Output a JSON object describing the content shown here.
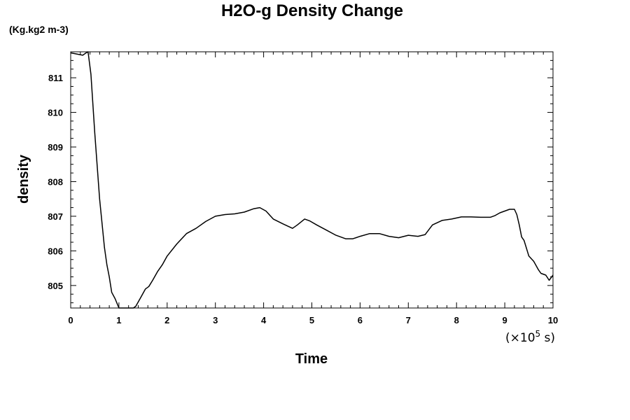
{
  "chart_data": {
    "type": "line",
    "title": "H2O-g Density Change",
    "unit_label": "(Kg.kg2 m-3)",
    "xlabel": "Time",
    "ylabel": "density",
    "x_multiplier": {
      "prefix": "(×10",
      "exponent": "5",
      "suffix": " s)"
    },
    "xlim": [
      0,
      10
    ],
    "ylim": [
      804.35,
      811.75
    ],
    "x_ticks": [
      "0",
      "1",
      "2",
      "3",
      "4",
      "5",
      "6",
      "7",
      "8",
      "9",
      "10"
    ],
    "y_ticks": [
      "805",
      "806",
      "807",
      "808",
      "809",
      "810",
      "811"
    ],
    "grid": false,
    "series": [
      {
        "color": "#000000",
        "x": [
          0,
          0.15,
          0.25,
          0.32,
          0.36,
          0.42,
          0.5,
          0.6,
          0.7,
          0.75,
          0.8,
          0.85,
          0.92,
          1.0,
          1.05,
          1.1,
          1.2,
          1.3,
          1.35,
          1.45,
          1.55,
          1.62,
          1.7,
          1.8,
          1.9,
          2.0,
          2.2,
          2.4,
          2.6,
          2.8,
          3.0,
          3.2,
          3.4,
          3.6,
          3.8,
          3.92,
          4.05,
          4.2,
          4.4,
          4.6,
          4.7,
          4.85,
          4.95,
          5.1,
          5.3,
          5.5,
          5.7,
          5.85,
          6.0,
          6.2,
          6.4,
          6.6,
          6.8,
          7.0,
          7.2,
          7.35,
          7.5,
          7.7,
          7.9,
          8.1,
          8.3,
          8.5,
          8.7,
          8.8,
          8.9,
          9.0,
          9.1,
          9.2,
          9.25,
          9.3,
          9.35,
          9.4,
          9.5,
          9.6,
          9.7,
          9.75,
          9.85,
          9.92,
          10.0
        ],
        "y": [
          811.72,
          811.68,
          811.65,
          811.72,
          811.75,
          811.1,
          809.4,
          807.5,
          806.1,
          805.6,
          805.25,
          804.8,
          804.62,
          804.35,
          804.33,
          804.3,
          804.32,
          804.35,
          804.4,
          804.65,
          804.9,
          804.97,
          805.15,
          805.4,
          805.6,
          805.85,
          806.2,
          806.5,
          806.65,
          806.85,
          807.0,
          807.05,
          807.07,
          807.12,
          807.22,
          807.25,
          807.15,
          806.92,
          806.78,
          806.65,
          806.75,
          806.92,
          806.87,
          806.75,
          806.6,
          806.45,
          806.35,
          806.35,
          806.42,
          806.5,
          806.5,
          806.42,
          806.38,
          806.45,
          806.42,
          806.47,
          806.75,
          806.88,
          806.92,
          806.98,
          806.98,
          806.97,
          806.97,
          807.02,
          807.1,
          807.15,
          807.2,
          807.2,
          807.05,
          806.75,
          806.4,
          806.3,
          805.85,
          805.7,
          805.45,
          805.35,
          805.3,
          805.15,
          805.3
        ]
      }
    ]
  }
}
